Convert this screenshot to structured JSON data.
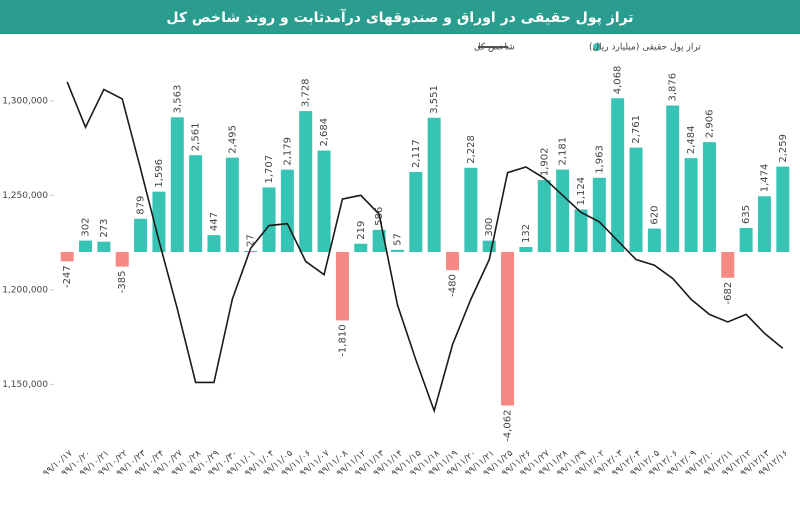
{
  "chart_data": {
    "type": "bar",
    "title": "تراز پول حقیقی در اوراق و صندوقهای درآمدثابت و روند شاخص کل",
    "categories": [
      "۹۹/۱۰/۱۷",
      "۹۹/۱۰/۲۰",
      "۹۹/۱۰/۲۱",
      "۹۹/۱۰/۲۲",
      "۹۹/۱۰/۲۳",
      "۹۹/۱۰/۲۴",
      "۹۹/۱۰/۲۷",
      "۹۹/۱۰/۲۸",
      "۹۹/۱۰/۲۹",
      "۹۹/۱۰/۳۰",
      "۹۹/۱۱/۰۱",
      "۹۹/۱۱/۰۴",
      "۹۹/۱۱/۰۵",
      "۹۹/۱۱/۰۶",
      "۹۹/۱۱/۰۷",
      "۹۹/۱۱/۰۸",
      "۹۹/۱۱/۱۲",
      "۹۹/۱۱/۱۳",
      "۹۹/۱۱/۱۴",
      "۹۹/۱۱/۱۵",
      "۹۹/۱۱/۱۸",
      "۹۹/۱۱/۱۹",
      "۹۹/۱۱/۲۰",
      "۹۹/۱۱/۲۱",
      "۹۹/۱۱/۲۵",
      "۹۹/۱۱/۲۶",
      "۹۹/۱۱/۲۷",
      "۹۹/۱۱/۲۸",
      "۹۹/۱۱/۲۹",
      "۹۹/۱۲/۰۲",
      "۹۹/۱۲/۰۳",
      "۹۹/۱۲/۰۴",
      "۹۹/۱۲/۰۵",
      "۹۹/۱۲/۰۶",
      "۹۹/۱۲/۰۹",
      "۹۹/۱۲/۱۰",
      "۹۹/۱۲/۱۱",
      "۹۹/۱۲/۱۲",
      "۹۹/۱۲/۱۳",
      "۹۹/۱۲/۱۶"
    ],
    "series": [
      {
        "name": "تراز پول حقیقی (میلیارد ریال)",
        "type": "bar",
        "color": "#37c4b4",
        "negative_color": "#f58a84",
        "values": [
          -247,
          302,
          273,
          -385,
          879,
          1596,
          3563,
          2561,
          447,
          2495,
          27,
          1707,
          2179,
          3728,
          2684,
          -1810,
          219,
          586,
          57,
          2117,
          3551,
          -480,
          2228,
          300,
          -4062,
          132,
          1902,
          2181,
          1124,
          1963,
          4068,
          2761,
          620,
          3876,
          2484,
          2906,
          -682,
          635,
          1474,
          2259
        ],
        "value_labels": [
          "-247",
          "302",
          "273",
          "-385",
          "879",
          "1,596",
          "3,563",
          "2,561",
          "447",
          "2,495",
          "27",
          "1,707",
          "2,179",
          "3,728",
          "2,684",
          "-1,810",
          "219",
          "586",
          "57",
          "2,117",
          "3,551",
          "-480",
          "2,228",
          "300",
          "-4,062",
          "132",
          "1,902",
          "2,181",
          "1,124",
          "1,963",
          "4,068",
          "2,761",
          "620",
          "3,876",
          "2,484",
          "2,906",
          "-682",
          "635",
          "1,474",
          "2,259"
        ]
      },
      {
        "name": "شاخص کل",
        "type": "line",
        "axis": "y2",
        "color": "#1a1a1a",
        "values": [
          1310000,
          1286000,
          1306000,
          1301000,
          1264000,
          1226000,
          1190000,
          1151000,
          1151000,
          1195000,
          1222000,
          1234000,
          1235000,
          1215000,
          1208000,
          1248000,
          1250000,
          1240000,
          1192000,
          1163000,
          1136000,
          1171000,
          1195000,
          1216000,
          1262000,
          1265000,
          1259000,
          1250000,
          1241000,
          1236000,
          1226000,
          1216000,
          1213000,
          1206000,
          1195000,
          1187000,
          1183000,
          1187000,
          1177000,
          1169000
        ]
      }
    ],
    "ylim": [
      -5000,
      5000
    ],
    "y2lim": [
      1120000,
      1320000
    ],
    "y2ticks": [
      {
        "value": 1150000,
        "label": "1,150,000"
      },
      {
        "value": 1200000,
        "label": "1,200,000"
      },
      {
        "value": 1250000,
        "label": "1,250,000"
      },
      {
        "value": 1300000,
        "label": "1,300,000"
      }
    ],
    "legend": "top"
  }
}
